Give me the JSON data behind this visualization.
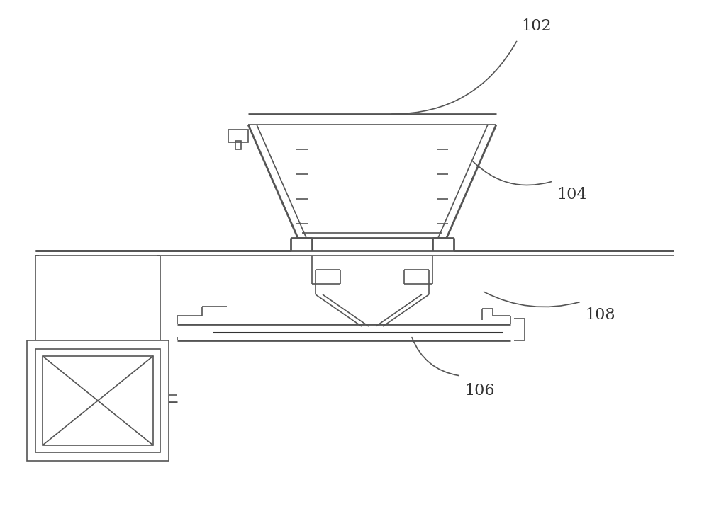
{
  "bg_color": "#ffffff",
  "line_color": "#555555",
  "line_width": 1.2,
  "thick_line": 2.0,
  "label_102": "102",
  "label_104": "104",
  "label_106": "106",
  "label_108": "108"
}
